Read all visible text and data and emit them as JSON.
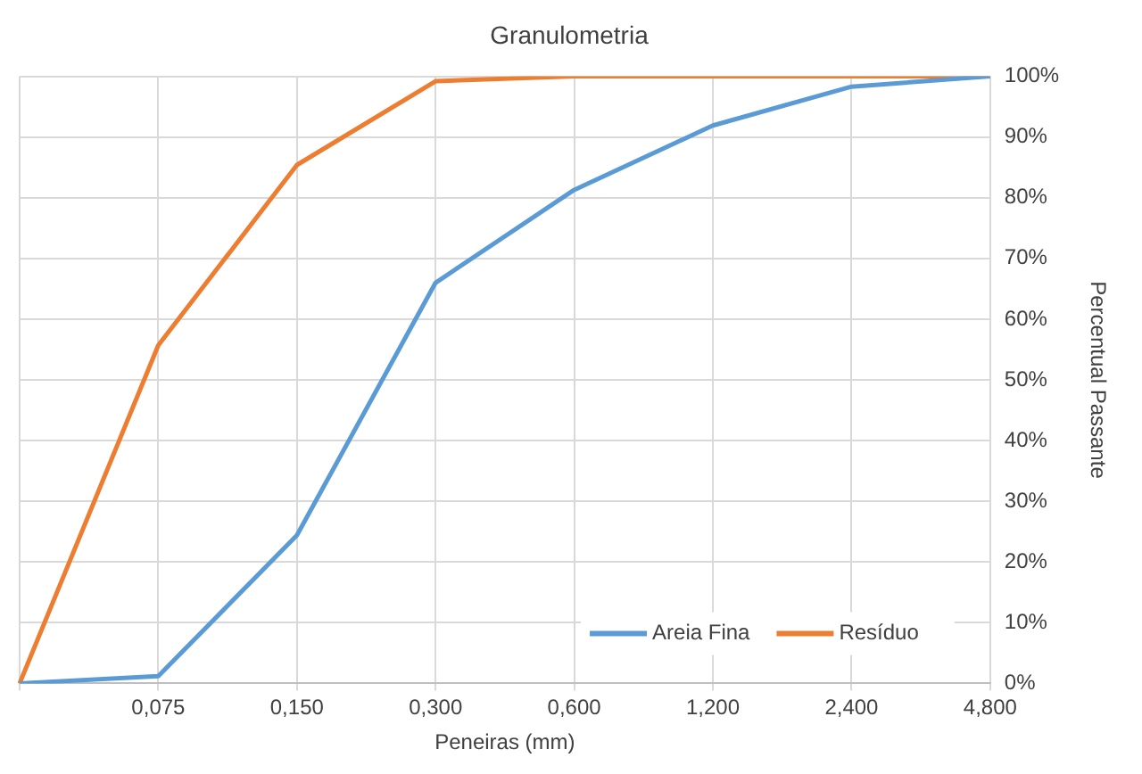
{
  "chart_data": {
    "type": "line",
    "title": "Granulometria",
    "xlabel": "Peneiras (mm)",
    "ylabel": "Percentual Passante",
    "categories": [
      null,
      "0,075",
      "0,150",
      "0,300",
      "0,600",
      "1,200",
      "2,400",
      "4,800"
    ],
    "series": [
      {
        "name": "Areia Fina",
        "color": "#5b9bd5",
        "values": [
          0,
          1.2,
          24.4,
          66,
          81.3,
          91.9,
          98.3,
          100
        ]
      },
      {
        "name": "Resíduo",
        "color": "#ed7d31",
        "values": [
          0,
          55.7,
          85.4,
          99.2,
          100,
          100,
          100,
          100
        ]
      }
    ],
    "ylim": [
      0,
      100
    ],
    "yticks": [
      {
        "value": 0,
        "label": "0%"
      },
      {
        "value": 10,
        "label": "10%"
      },
      {
        "value": 20,
        "label": "20%"
      },
      {
        "value": 30,
        "label": "30%"
      },
      {
        "value": 40,
        "label": "40%"
      },
      {
        "value": 50,
        "label": "50%"
      },
      {
        "value": 60,
        "label": "60%"
      },
      {
        "value": 70,
        "label": "70%"
      },
      {
        "value": 80,
        "label": "80%"
      },
      {
        "value": 90,
        "label": "90%"
      },
      {
        "value": 100,
        "label": "100%"
      }
    ],
    "grid": true,
    "legend": "bottom right",
    "marker": "none",
    "line_style": "solid"
  }
}
